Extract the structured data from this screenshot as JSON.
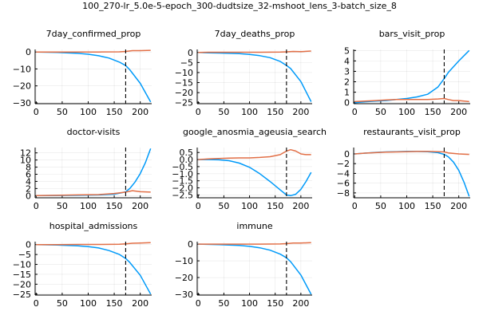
{
  "figure_title": "100_270-lr_5.0e-5-epoch_300-dudtsize_32-mshoot_lens_3-batch_size_8",
  "colors": {
    "series_1": "#009af9",
    "series_2": "#e26f46",
    "vline": "#000000"
  },
  "chart_data": [
    {
      "type": "line",
      "title": "7day_confirmed_prop",
      "xlim": [
        -2,
        222
      ],
      "ylim": [
        -30.5,
        1.5
      ],
      "xticks": [
        0,
        50,
        100,
        150,
        200
      ],
      "yticks": [
        0,
        -10,
        -20,
        -30
      ],
      "ytick_labels": [
        "0",
        "−10",
        "−20",
        "−30"
      ],
      "grid": true,
      "legend": "none",
      "vline_x": 172,
      "series": [
        {
          "x": [
            0,
            40,
            80,
            100,
            120,
            140,
            160,
            172,
            180,
            200,
            220
          ],
          "values": [
            0,
            -0.3,
            -0.8,
            -1.3,
            -2.2,
            -3.6,
            -6.0,
            -8.0,
            -10.5,
            -18.5,
            -29.5
          ]
        },
        {
          "x": [
            0,
            40,
            80,
            120,
            160,
            172,
            185,
            200,
            220
          ],
          "values": [
            0,
            0,
            0,
            0,
            0.1,
            0.3,
            0.8,
            0.8,
            1.0
          ]
        }
      ]
    },
    {
      "type": "line",
      "title": "7day_deaths_prop",
      "xlim": [
        -2,
        222
      ],
      "ylim": [
        -25.5,
        1.5
      ],
      "xticks": [
        0,
        50,
        100,
        150,
        200
      ],
      "yticks": [
        0,
        -5,
        -10,
        -15,
        -20,
        -25
      ],
      "ytick_labels": [
        "0",
        "−5",
        "−10",
        "−15",
        "−20",
        "−25"
      ],
      "grid": true,
      "legend": "none",
      "vline_x": 172,
      "series": [
        {
          "x": [
            0,
            20,
            40,
            80,
            100,
            120,
            140,
            160,
            172,
            180,
            200,
            220
          ],
          "values": [
            0,
            -0.2,
            -0.3,
            -0.6,
            -1.0,
            -1.6,
            -2.6,
            -4.5,
            -6.5,
            -8.0,
            -14.5,
            -24.5
          ]
        },
        {
          "x": [
            0,
            20,
            40,
            80,
            120,
            160,
            172,
            185,
            200,
            220
          ],
          "values": [
            0,
            0.1,
            0.1,
            0.1,
            0.1,
            0.2,
            0.3,
            0.5,
            0.4,
            0.7
          ]
        }
      ]
    },
    {
      "type": "line",
      "title": "bars_visit_prop",
      "xlim": [
        -2,
        222
      ],
      "ylim": [
        -0.1,
        5.1
      ],
      "xticks": [
        0,
        50,
        100,
        150,
        200
      ],
      "yticks": [
        0,
        1,
        2,
        3,
        4,
        5
      ],
      "ytick_labels": [
        "0",
        "1",
        "2",
        "3",
        "4",
        "5"
      ],
      "grid": true,
      "legend": "none",
      "vline_x": 172,
      "series": [
        {
          "x": [
            0,
            20,
            40,
            60,
            80,
            100,
            120,
            140,
            160,
            172,
            180,
            200,
            220
          ],
          "values": [
            0,
            0.08,
            0.15,
            0.2,
            0.3,
            0.4,
            0.55,
            0.8,
            1.5,
            2.3,
            2.9,
            4.0,
            5.0
          ]
        },
        {
          "x": [
            0,
            20,
            40,
            60,
            80,
            100,
            120,
            140,
            160,
            172,
            180,
            190,
            200,
            220
          ],
          "values": [
            0.1,
            0.15,
            0.2,
            0.25,
            0.3,
            0.3,
            0.3,
            0.3,
            0.35,
            0.4,
            0.3,
            0.2,
            0.2,
            0.1
          ]
        }
      ]
    },
    {
      "type": "line",
      "title": "doctor-visits",
      "xlim": [
        -2,
        222
      ],
      "ylim": [
        -0.6,
        13.5
      ],
      "xticks": [
        0,
        50,
        100,
        150,
        200
      ],
      "yticks": [
        0,
        2,
        4,
        6,
        8,
        10,
        12
      ],
      "ytick_labels": [
        "0",
        "2",
        "4",
        "6",
        "8",
        "10",
        "12"
      ],
      "grid": true,
      "legend": "none",
      "vline_x": 172,
      "series": [
        {
          "x": [
            0,
            40,
            80,
            120,
            150,
            165,
            172,
            180,
            190,
            200,
            210,
            220
          ],
          "values": [
            0,
            0.05,
            0.1,
            0.2,
            0.4,
            0.8,
            1.1,
            2.0,
            3.8,
            6.2,
            9.3,
            13.2
          ]
        },
        {
          "x": [
            0,
            40,
            80,
            120,
            150,
            172,
            185,
            200,
            220
          ],
          "values": [
            0,
            0.1,
            0.2,
            0.3,
            0.6,
            1.0,
            1.4,
            1.1,
            1.0
          ]
        }
      ]
    },
    {
      "type": "line",
      "title": "google_anosmia_ageusia_search",
      "xlim": [
        -2,
        222
      ],
      "ylim": [
        -2.7,
        0.85
      ],
      "xticks": [
        0,
        50,
        100,
        150,
        200
      ],
      "yticks": [
        0.5,
        0.0,
        -0.5,
        -1.0,
        -1.5,
        -2.0,
        -2.5
      ],
      "ytick_labels": [
        "0.5",
        "0.0",
        "−0.5",
        "−1.0",
        "−1.5",
        "−2.0",
        "−2.5"
      ],
      "grid": true,
      "legend": "none",
      "vline_x": 172,
      "series": [
        {
          "x": [
            0,
            20,
            40,
            60,
            80,
            100,
            120,
            140,
            160,
            172,
            180,
            190,
            200,
            210,
            220
          ],
          "values": [
            0,
            0,
            -0.02,
            -0.08,
            -0.25,
            -0.55,
            -1.0,
            -1.55,
            -2.15,
            -2.5,
            -2.55,
            -2.45,
            -2.1,
            -1.55,
            -0.9
          ]
        },
        {
          "x": [
            0,
            20,
            40,
            60,
            80,
            100,
            120,
            140,
            160,
            172,
            180,
            190,
            200,
            210,
            220
          ],
          "values": [
            0,
            0.05,
            0.08,
            0.1,
            0.12,
            0.12,
            0.15,
            0.2,
            0.35,
            0.6,
            0.7,
            0.6,
            0.4,
            0.35,
            0.35
          ]
        }
      ]
    },
    {
      "type": "line",
      "title": "restaurants_visit_prop",
      "xlim": [
        -2,
        222
      ],
      "ylim": [
        -9.0,
        1.3
      ],
      "xticks": [
        0,
        50,
        100,
        150,
        200
      ],
      "yticks": [
        0,
        -2,
        -4,
        -6,
        -8
      ],
      "ytick_labels": [
        "0",
        "−2",
        "−4",
        "−6",
        "−8"
      ],
      "grid": true,
      "legend": "none",
      "vline_x": 172,
      "series": [
        {
          "x": [
            0,
            20,
            40,
            60,
            80,
            100,
            120,
            140,
            160,
            172,
            180,
            190,
            200,
            210,
            220
          ],
          "values": [
            0,
            0.15,
            0.3,
            0.4,
            0.45,
            0.5,
            0.5,
            0.45,
            0.25,
            -0.1,
            -0.6,
            -1.7,
            -3.4,
            -5.8,
            -8.7
          ]
        },
        {
          "x": [
            0,
            20,
            40,
            60,
            80,
            100,
            120,
            140,
            160,
            172,
            180,
            200,
            220
          ],
          "values": [
            0,
            0.15,
            0.25,
            0.35,
            0.4,
            0.45,
            0.5,
            0.5,
            0.45,
            0.4,
            0.2,
            0,
            -0.1
          ]
        }
      ]
    },
    {
      "type": "line",
      "title": "hospital_admissions",
      "xlim": [
        -2,
        222
      ],
      "ylim": [
        -25.5,
        1.5
      ],
      "xticks": [
        0,
        50,
        100,
        150,
        200
      ],
      "yticks": [
        0,
        -5,
        -10,
        -15,
        -20,
        -25
      ],
      "ytick_labels": [
        "0",
        "−5",
        "−10",
        "−15",
        "−20",
        "−25"
      ],
      "grid": true,
      "legend": "none",
      "vline_x": 172,
      "series": [
        {
          "x": [
            0,
            40,
            80,
            100,
            120,
            140,
            160,
            172,
            180,
            200,
            220
          ],
          "values": [
            0,
            -0.2,
            -0.6,
            -1.0,
            -1.7,
            -3.0,
            -5.0,
            -7.0,
            -9.0,
            -15.5,
            -25.0
          ]
        },
        {
          "x": [
            0,
            40,
            80,
            120,
            160,
            172,
            185,
            200,
            220
          ],
          "values": [
            0,
            0,
            0.1,
            0.1,
            0.2,
            0.4,
            0.7,
            0.8,
            1.0
          ]
        }
      ]
    },
    {
      "type": "line",
      "title": "immune",
      "xlim": [
        -2,
        222
      ],
      "ylim": [
        -30.5,
        1.5
      ],
      "xticks": [
        0,
        50,
        100,
        150,
        200
      ],
      "yticks": [
        0,
        -10,
        -20,
        -30
      ],
      "ytick_labels": [
        "0",
        "−10",
        "−20",
        "−30"
      ],
      "grid": true,
      "legend": "none",
      "vline_x": 172,
      "series": [
        {
          "x": [
            0,
            40,
            80,
            100,
            120,
            140,
            160,
            172,
            180,
            200,
            220
          ],
          "values": [
            0,
            -0.3,
            -0.8,
            -1.3,
            -2.2,
            -3.6,
            -6.0,
            -8.2,
            -10.5,
            -18.5,
            -30.0
          ]
        },
        {
          "x": [
            0,
            40,
            80,
            120,
            160,
            172,
            185,
            200,
            220
          ],
          "values": [
            0,
            0,
            0,
            0,
            0.1,
            0.3,
            0.7,
            0.7,
            0.9
          ]
        }
      ]
    }
  ]
}
